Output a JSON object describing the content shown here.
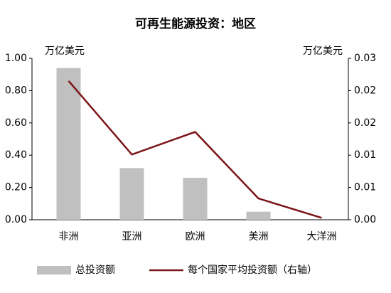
{
  "chart_data": {
    "type": "bar_line",
    "title": "可再生能源投资：地区",
    "y_label": "万亿美元",
    "y2_label": "万亿美元",
    "categories": [
      "非洲",
      "亚洲",
      "欧洲",
      "美洲",
      "大洋洲"
    ],
    "series": [
      {
        "name": "总投资额",
        "type": "bar",
        "color": "#c0c0c0",
        "values": [
          0.94,
          0.32,
          0.26,
          0.05,
          0
        ]
      },
      {
        "name": "每个国家平均投资额（右轴）",
        "type": "line",
        "axis": "y2",
        "color": "#7b1416",
        "values": [
          0.0215,
          0.0101,
          0.0136,
          0.0033,
          0.0003
        ]
      }
    ],
    "ylim": [
      0,
      1
    ],
    "yticks": [
      {
        "value": 0,
        "label": "0.00"
      },
      {
        "value": 0.2,
        "label": "0.20"
      },
      {
        "value": 0.4,
        "label": "0.40"
      },
      {
        "value": 0.6,
        "label": "0.60"
      },
      {
        "value": 0.8,
        "label": "0.80"
      },
      {
        "value": 1,
        "label": "1.00"
      }
    ],
    "y2lim": [
      0,
      0.025
    ],
    "y2ticks": [
      {
        "value": 0,
        "label": "0.00"
      },
      {
        "value": 0.005,
        "label": "0.01"
      },
      {
        "value": 0.01,
        "label": "0.01"
      },
      {
        "value": 0.015,
        "label": "0.02"
      },
      {
        "value": 0.02,
        "label": "0.02"
      },
      {
        "value": 0.025,
        "label": "0.03"
      }
    ],
    "legend": "bottom"
  }
}
